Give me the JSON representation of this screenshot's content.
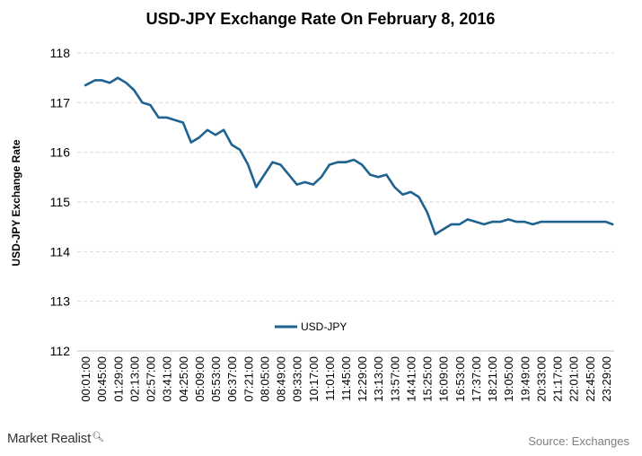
{
  "chart_data": {
    "type": "line",
    "title": "USD-JPY Exchange Rate On February 8, 2016",
    "ylabel": "USD-JPY Exchange Rate",
    "xlabel": "",
    "ylim": [
      112,
      118
    ],
    "yticks": [
      112,
      113,
      114,
      115,
      116,
      117,
      118
    ],
    "grid": true,
    "legend_position": "center",
    "categories": [
      "00:01:00",
      "00:45:00",
      "01:29:00",
      "02:13:00",
      "02:57:00",
      "03:41:00",
      "04:25:00",
      "05:09:00",
      "05:53:00",
      "06:37:00",
      "07:21:00",
      "08:05:00",
      "08:49:00",
      "09:33:00",
      "10:17:00",
      "11:01:00",
      "11:45:00",
      "12:29:00",
      "13:13:00",
      "13:57:00",
      "14:41:00",
      "15:25:00",
      "16:09:00",
      "16:53:00",
      "17:37:00",
      "18:21:00",
      "19:05:00",
      "19:49:00",
      "20:33:00",
      "21:17:00",
      "22:01:00",
      "22:45:00",
      "23:29:00"
    ],
    "series": [
      {
        "name": "USD-JPY",
        "color": "#1f6391",
        "x": [
          0,
          0.3,
          0.6,
          1,
          1.5,
          2,
          2.5,
          3,
          3.5,
          4,
          4.5,
          5,
          5.5,
          6,
          6.5,
          7,
          7.5,
          8,
          8.5,
          9,
          9.5,
          10,
          10.5,
          11,
          11.5,
          12,
          12.5,
          13,
          13.5,
          14,
          14.5,
          15,
          15.5,
          16,
          16.5,
          17,
          17.5,
          18,
          18.5,
          19,
          19.5,
          20,
          20.5,
          21,
          21.5,
          22,
          22.5,
          23,
          23.5,
          24,
          24.5,
          25,
          25.5,
          26,
          26.5,
          27,
          27.5,
          28,
          28.5,
          29,
          29.5,
          30,
          30.5,
          31,
          31.5,
          32,
          32.4
        ],
        "values": [
          117.35,
          117.4,
          117.45,
          117.45,
          117.4,
          117.5,
          117.4,
          117.25,
          117.0,
          116.95,
          116.7,
          116.7,
          116.65,
          116.6,
          116.2,
          116.3,
          116.45,
          116.35,
          116.45,
          116.15,
          116.05,
          115.75,
          115.3,
          115.55,
          115.8,
          115.75,
          115.55,
          115.35,
          115.4,
          115.35,
          115.5,
          115.75,
          115.8,
          115.8,
          115.85,
          115.75,
          115.55,
          115.5,
          115.55,
          115.3,
          115.15,
          115.2,
          115.1,
          114.8,
          114.35,
          114.45,
          114.55,
          114.55,
          114.65,
          114.6,
          114.55,
          114.6,
          114.6,
          114.65,
          114.6,
          114.6,
          114.55,
          114.6,
          114.6,
          114.6,
          114.6,
          114.6,
          114.6,
          114.6,
          114.6,
          114.6,
          114.55
        ]
      }
    ]
  },
  "footer": {
    "brand": "Market Realist",
    "brand_icon": "magnifier-icon",
    "source": "Source: Exchanges"
  }
}
